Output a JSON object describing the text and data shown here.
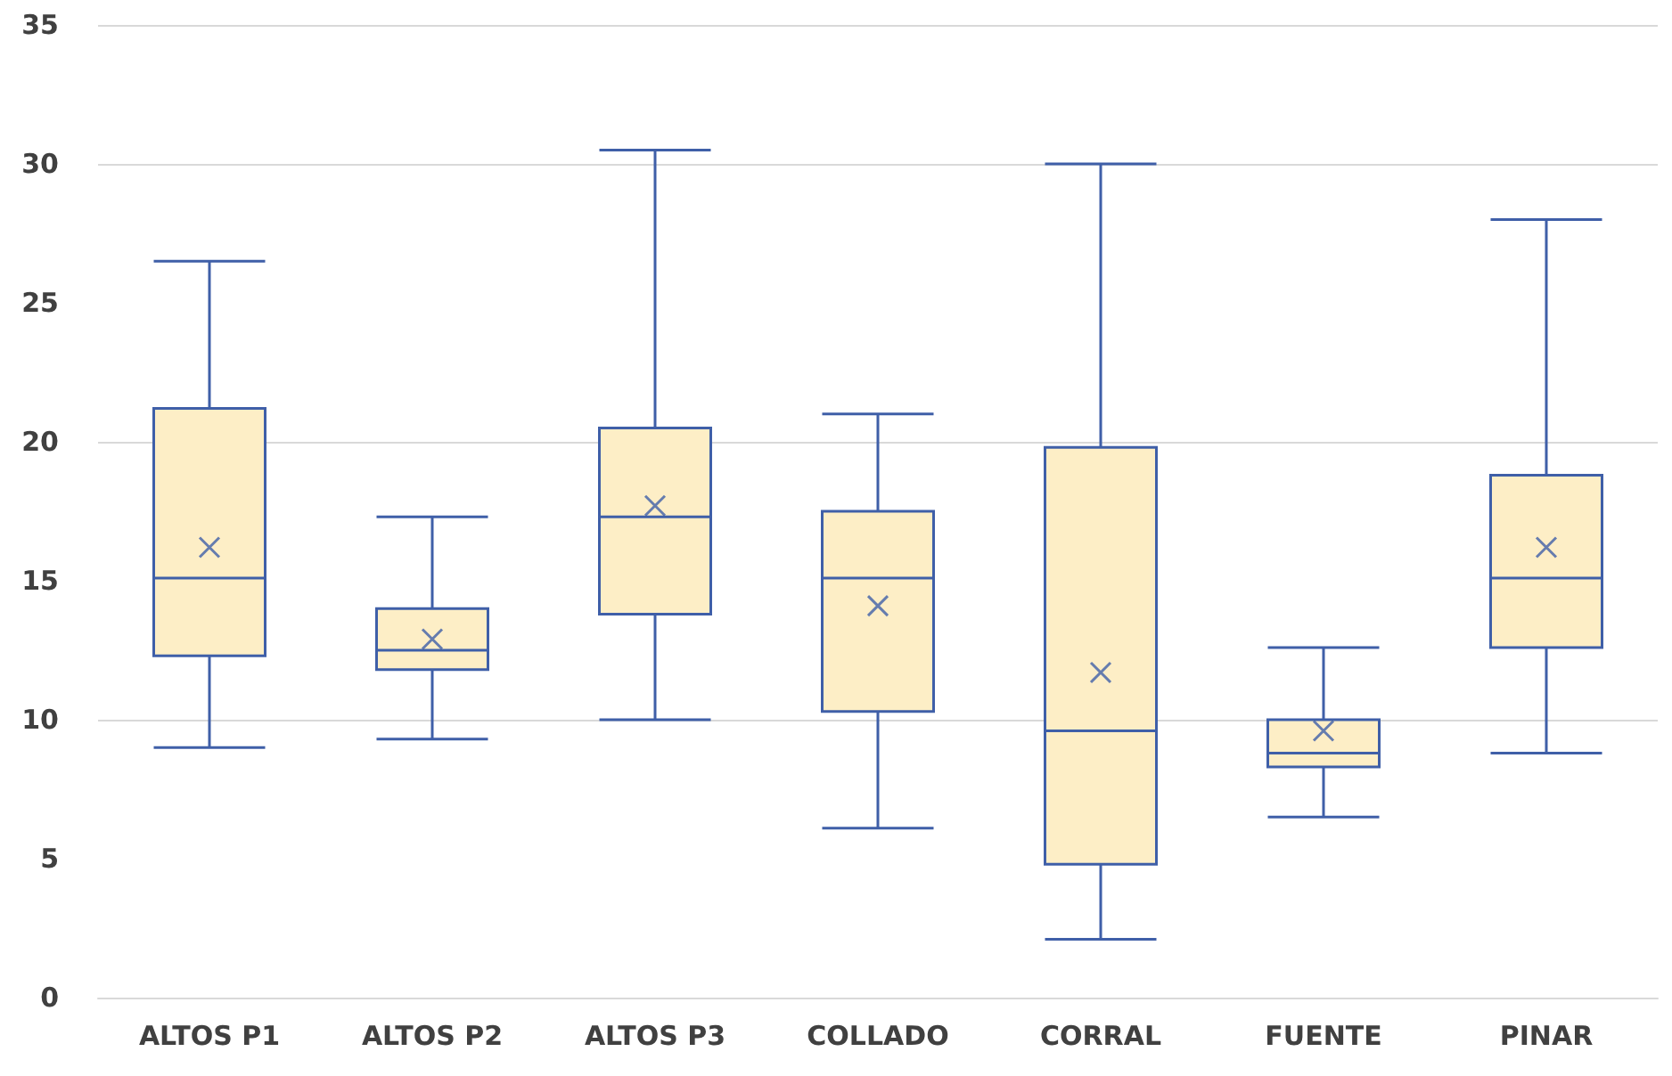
{
  "chart_data": {
    "type": "box",
    "categories": [
      "ALTOS P1",
      "ALTOS P2",
      "ALTOS P3",
      "COLLADO",
      "CORRAL",
      "FUENTE",
      "PINAR"
    ],
    "series": [
      {
        "color": "#3f5fa8",
        "boxes": [
          {
            "low": 9.0,
            "q1": 12.3,
            "median": 15.1,
            "q3": 21.2,
            "high": 26.5,
            "mean": 16.2
          },
          {
            "low": 9.3,
            "q1": 11.8,
            "median": 12.5,
            "q3": 14.0,
            "high": 17.3,
            "mean": 12.9
          },
          {
            "low": 10.0,
            "q1": 13.8,
            "median": 17.3,
            "q3": 20.5,
            "high": 30.5,
            "mean": 17.7
          },
          {
            "low": 6.1,
            "q1": 10.3,
            "median": 15.1,
            "q3": 17.5,
            "high": 21.0,
            "mean": 14.1
          },
          {
            "low": 2.1,
            "q1": 4.8,
            "median": 9.6,
            "q3": 19.8,
            "high": 30.0,
            "mean": 11.7
          },
          {
            "low": 6.5,
            "q1": 8.3,
            "median": 8.8,
            "q3": 10.0,
            "high": 12.6,
            "mean": 9.6
          },
          {
            "low": 8.8,
            "q1": 12.6,
            "median": 15.1,
            "q3": 18.8,
            "high": 28.0,
            "mean": 16.2
          }
        ]
      }
    ],
    "ylim": [
      0,
      35
    ],
    "yticks": [
      0,
      5,
      10,
      15,
      20,
      25,
      30,
      35
    ],
    "grid": "y"
  }
}
